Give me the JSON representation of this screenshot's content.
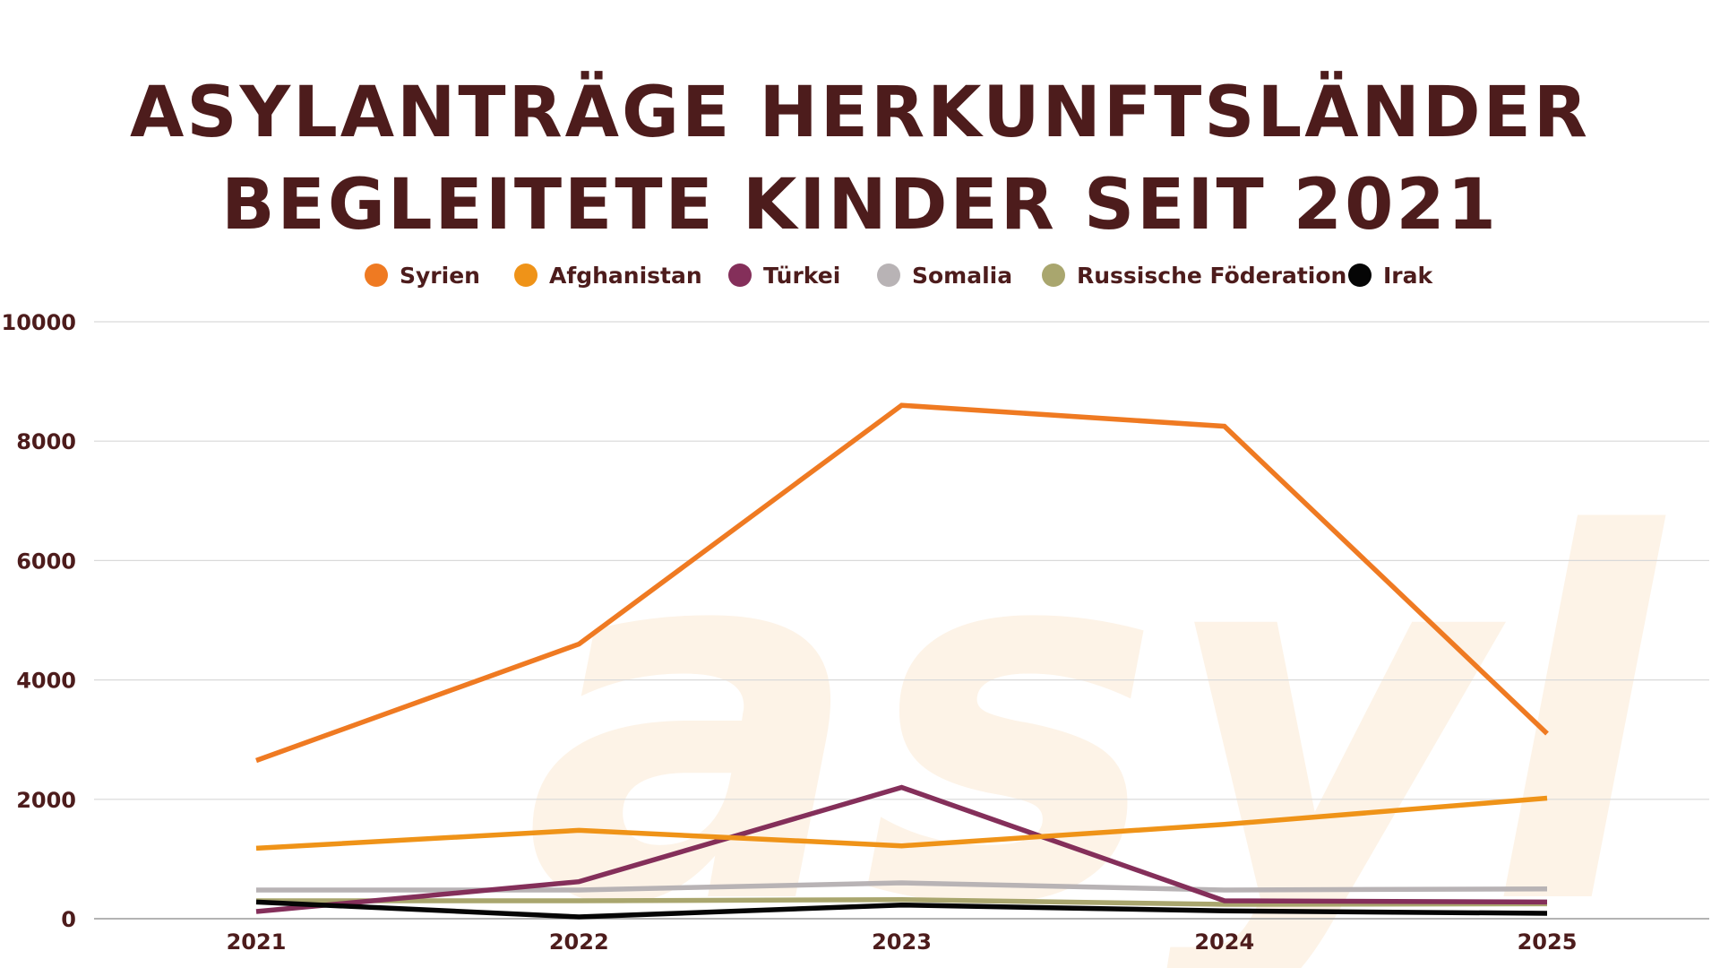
{
  "chart_data": {
    "type": "line",
    "title_lines": [
      "ASYLANTRÄGE HERKUNFTSLÄNDER",
      "BEGLEITETE KINDER SEIT 2021"
    ],
    "watermark": "asyl",
    "x": [
      "2021",
      "2022",
      "2023",
      "2024",
      "2025"
    ],
    "ylim": [
      0,
      10000
    ],
    "yticks": [
      0,
      2000,
      4000,
      6000,
      8000,
      10000
    ],
    "grid": true,
    "legend_position": "top-center",
    "series": [
      {
        "name": "Syrien",
        "color": "#ef7a22",
        "values": [
          2650,
          4600,
          8600,
          8250,
          3100
        ]
      },
      {
        "name": "Afghanistan",
        "color": "#ef9318",
        "values": [
          1180,
          1480,
          1220,
          1580,
          2020
        ]
      },
      {
        "name": "Türkei",
        "color": "#842f5a",
        "values": [
          120,
          620,
          2200,
          300,
          280
        ]
      },
      {
        "name": "Somalia",
        "color": "#b8b3b5",
        "values": [
          480,
          480,
          600,
          480,
          500
        ]
      },
      {
        "name": "Russische Föderation",
        "color": "#a9a66e",
        "values": [
          300,
          300,
          320,
          240,
          250
        ]
      },
      {
        "name": "Irak",
        "color": "#050505",
        "values": [
          280,
          30,
          230,
          130,
          90
        ]
      }
    ]
  }
}
